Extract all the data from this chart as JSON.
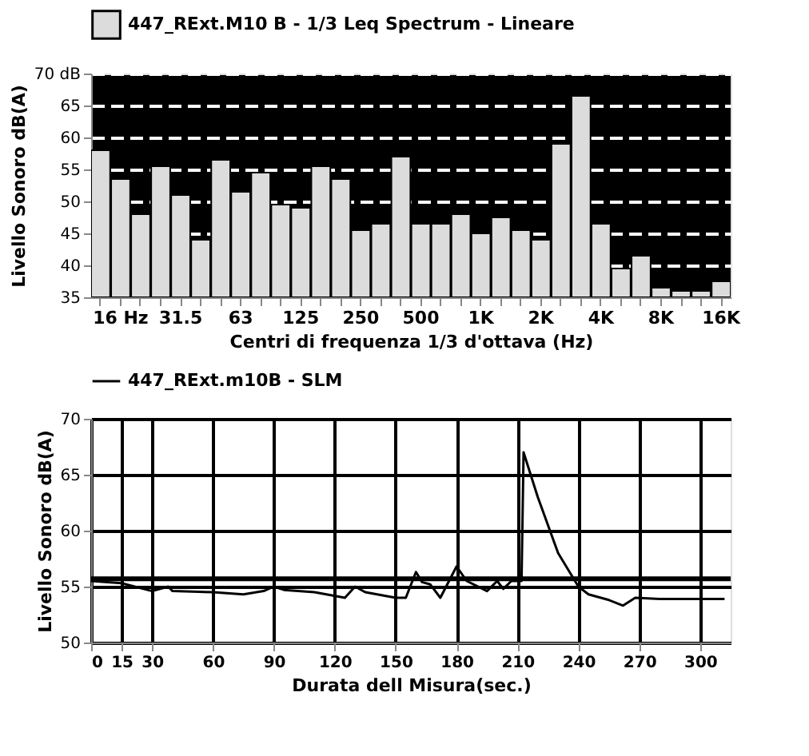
{
  "chart_data": [
    {
      "type": "bar",
      "xlabel": "Centri di frequenza 1/3 d'ottava (Hz)",
      "ylabel": "Livello Sonoro dB(A)",
      "categories": [
        null,
        "16 Hz",
        null,
        null,
        "31.5",
        null,
        null,
        "63",
        null,
        null,
        "125",
        null,
        null,
        "250",
        null,
        null,
        "500",
        null,
        null,
        "1K",
        null,
        null,
        "2K",
        null,
        null,
        "4K",
        null,
        null,
        "8K",
        null,
        null,
        "16K"
      ],
      "series": [
        {
          "name": "447_RExt.M10 B - 1/3 Leq Spectrum - Lineare",
          "color": "#dcdcdc",
          "values": [
            58,
            53.5,
            48,
            55.5,
            51,
            44,
            56.5,
            51.5,
            54.5,
            49.5,
            49,
            55.5,
            53.5,
            45.5,
            46.5,
            57,
            46.5,
            46.5,
            48,
            45,
            47.5,
            45.5,
            44,
            59,
            66.5,
            46.5,
            39.5,
            41.5,
            36.5,
            36,
            36,
            37.5
          ]
        }
      ],
      "ylim": [
        35,
        70
      ],
      "yticks": [
        35,
        40,
        45,
        50,
        55,
        60,
        65,
        {
          "value": 70,
          "label": "70 dB"
        }
      ],
      "grid": "y",
      "legend": "top"
    },
    {
      "type": "line",
      "xlabel": "Durata dell Misura(sec.)",
      "ylabel": "Livello Sonoro dB(A)",
      "series": [
        {
          "name": "447_RExt.m10B - SLM",
          "color": "#000000",
          "x": [
            0,
            15,
            30,
            38,
            40,
            60,
            75,
            85,
            90,
            95,
            110,
            125,
            130,
            135,
            150,
            155,
            160,
            163,
            167,
            172,
            180,
            185,
            195,
            200,
            203,
            207,
            212,
            213,
            220,
            230,
            240,
            245,
            255,
            262,
            268,
            280,
            300,
            312
          ],
          "values": [
            55.5,
            55.3,
            54.6,
            55.0,
            54.6,
            54.5,
            54.3,
            54.6,
            55.0,
            54.7,
            54.5,
            54.0,
            55.0,
            54.5,
            54.0,
            54.0,
            56.3,
            55.4,
            55.2,
            54.0,
            56.8,
            55.5,
            54.6,
            55.5,
            54.8,
            55.5,
            55.5,
            67.0,
            63,
            58,
            55.0,
            54.3,
            53.8,
            53.3,
            54.0,
            53.9,
            53.9,
            53.9
          ]
        }
      ],
      "xlim": [
        0,
        315
      ],
      "xticks": [
        0,
        15,
        30,
        60,
        90,
        120,
        150,
        180,
        210,
        240,
        270,
        300
      ],
      "ylim": [
        50,
        70
      ],
      "yticks": [
        50,
        55,
        60,
        65,
        70
      ],
      "grid": true,
      "legend": "top",
      "ref_lines": [
        {
          "axis": "y",
          "value": 55.7
        }
      ]
    }
  ]
}
